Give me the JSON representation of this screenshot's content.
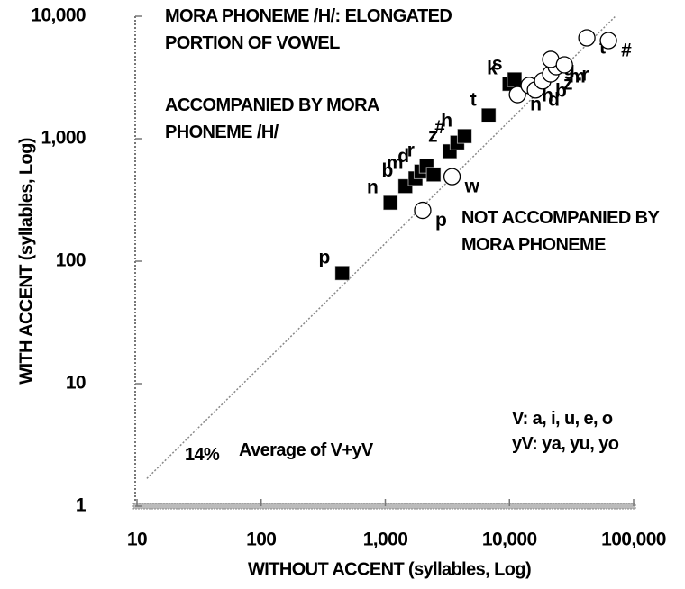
{
  "chart_data": {
    "type": "scatter",
    "xlabel": "WITHOUT ACCENT (syllables, Log)",
    "ylabel": "WITH ACCENT (syllables, Log)",
    "log_x": true,
    "log_y": true,
    "xlim": [
      10,
      100000
    ],
    "ylim": [
      1,
      10000
    ],
    "xticks": [
      10,
      100,
      {
        "value": 1000,
        "label": "1,000"
      },
      {
        "value": 10000,
        "label": "10,000"
      },
      {
        "value": 100000,
        "label": "100,000"
      }
    ],
    "yticks": [
      1,
      10,
      100,
      {
        "value": 1000,
        "label": "1,000"
      },
      {
        "value": 10000,
        "label": "10,000"
      }
    ],
    "annotations": [
      "MORA PHONEME /H/: ELONGATED PORTION OF VOWEL",
      "V: a, i, u, e, o",
      "yV: ya, yu, yo",
      "Average of V+yV"
    ],
    "reference_line": {
      "label": "14%",
      "value": 14
    },
    "series": [
      {
        "name": "ACCOMPANIED BY MORA PHONEME /H/",
        "marker": "square",
        "color": "#000000",
        "labels": [
          "p",
          "n",
          "b",
          "m",
          "d",
          "r",
          null,
          "z",
          "#",
          "h",
          "t",
          "k",
          "s"
        ],
        "x": [
          450,
          1100,
          1450,
          1750,
          1950,
          2150,
          2450,
          3300,
          3800,
          4350,
          6800,
          10000,
          11000
        ],
        "values": [
          80,
          300,
          410,
          475,
          540,
          600,
          510,
          790,
          930,
          1050,
          1550,
          2800,
          3050
        ]
      },
      {
        "name": "NOT ACCOMPANIED BY MORA PHONEME",
        "marker": "circle",
        "color": "#000000",
        "labels": [
          "p",
          "w",
          "n",
          "h",
          "d",
          "b",
          "z",
          "m",
          "g",
          ".r",
          "t",
          "#"
        ],
        "x": [
          2000,
          3450,
          11600,
          14400,
          16200,
          18500,
          21500,
          23800,
          21500,
          27700,
          42000,
          62700
        ],
        "values": [
          260,
          490,
          2290,
          2720,
          2500,
          2960,
          3380,
          3870,
          4440,
          4010,
          6660,
          6330
        ]
      }
    ]
  }
}
